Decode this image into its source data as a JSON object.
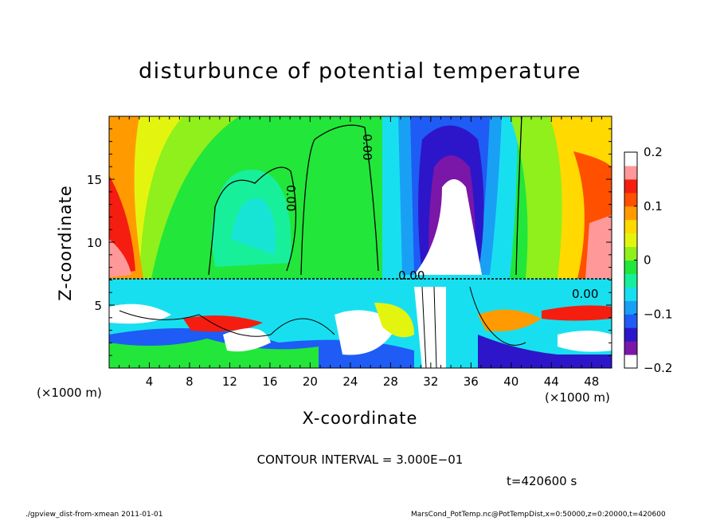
{
  "chart_data": {
    "type": "heatmap",
    "title": "disturbunce of potential temperature",
    "xlabel": "X-coordinate",
    "ylabel": "Z-coordinate",
    "x_unit": "(×1000 m)",
    "xlim": [
      0,
      50
    ],
    "ylim": [
      0,
      20
    ],
    "x_ticks": [
      "4",
      "8",
      "12",
      "16",
      "20",
      "24",
      "28",
      "32",
      "36",
      "40",
      "44",
      "48"
    ],
    "y_ticks": [
      "5",
      "10",
      "15"
    ],
    "colorbar": {
      "range": [
        -0.2,
        0.2
      ],
      "labels": [
        "0.2",
        "0.1",
        "0",
        "−0.1",
        "−0.2"
      ],
      "colors": [
        "#ffffff",
        "#7a16a8",
        "#2d16c9",
        "#1e5cf5",
        "#19a0f5",
        "#18dff0",
        "#18ef9b",
        "#22e63a",
        "#8ff01b",
        "#e3f50f",
        "#ffd900",
        "#ff9b00",
        "#ff5000",
        "#f51d10",
        "#ff9999",
        "#ffffff"
      ]
    },
    "contour_labels": [
      "0.00",
      "0.00",
      "0.00",
      "0.00"
    ],
    "contour_interval": "CONTOUR INTERVAL = 3.000E−01",
    "time": "t=420600 s"
  },
  "footer": {
    "left": "./gpview_dist-from-xmean  2011-01-01",
    "right": "MarsCond_PotTemp.nc@PotTempDist,x=0:50000,z=0:20000,t=420600"
  }
}
